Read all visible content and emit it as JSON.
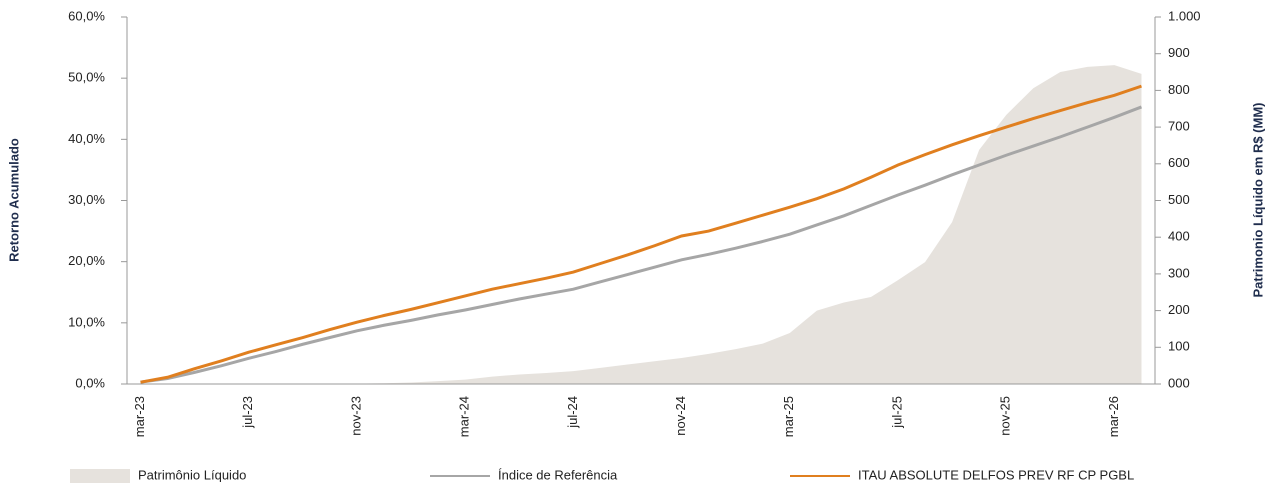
{
  "chart_data": {
    "type": "line",
    "categories": [
      "mar-23",
      null,
      null,
      null,
      "jul-23",
      null,
      null,
      null,
      "nov-23",
      null,
      null,
      null,
      "mar-24",
      null,
      null,
      null,
      "jul-24",
      null,
      null,
      null,
      "nov-24",
      null,
      null,
      null,
      "mar-25",
      null,
      null,
      null,
      "jul-25",
      null,
      null,
      null,
      "nov-25",
      null,
      null,
      null,
      "mar-26",
      null
    ],
    "y_label": "Retorno Acumulado",
    "y2_label": "Patrimonio Líquido em R$ (MM)",
    "ylim": [
      0,
      60
    ],
    "yticks": [
      {
        "value": 0,
        "label": "0,0%"
      },
      {
        "value": 10,
        "label": "10,0%"
      },
      {
        "value": 20,
        "label": "20,0%"
      },
      {
        "value": 30,
        "label": "30,0%"
      },
      {
        "value": 40,
        "label": "40,0%"
      },
      {
        "value": 50,
        "label": "50,0%"
      },
      {
        "value": 60,
        "label": "60,0%"
      }
    ],
    "y2lim": [
      0,
      1000
    ],
    "y2ticks": [
      {
        "value": 0,
        "label": "000"
      },
      100,
      200,
      300,
      400,
      500,
      600,
      700,
      800,
      900,
      {
        "value": 1000,
        "label": "1.000"
      }
    ],
    "series": [
      {
        "name": "Patrimônio Líquido",
        "type": "area",
        "axis": "y2",
        "color": "#e6e2dd",
        "values": [
          0,
          0,
          0,
          0,
          0,
          0,
          0,
          0,
          1,
          2,
          4,
          8,
          12,
          20,
          26,
          30,
          35,
          44,
          53,
          62,
          71,
          82,
          95,
          110,
          139,
          200,
          222,
          237,
          283,
          332,
          441,
          638,
          733,
          806,
          850,
          864,
          869,
          845
        ]
      },
      {
        "name": "Índice de Referência",
        "type": "line",
        "color": "#a6a6a6",
        "values": [
          0.3,
          0.9,
          1.9,
          3.0,
          4.2,
          5.3,
          6.5,
          7.6,
          8.7,
          9.6,
          10.4,
          11.3,
          12.1,
          13.0,
          13.9,
          14.7,
          15.5,
          16.7,
          17.9,
          19.1,
          20.3,
          21.2,
          22.2,
          23.3,
          24.5,
          26.0,
          27.5,
          29.2,
          30.9,
          32.5,
          34.2,
          35.8,
          37.4,
          38.9,
          40.4,
          42.0,
          43.6,
          45.3
        ]
      },
      {
        "name": "ITAU ABSOLUTE DELFOS PREV RF CP PGBL",
        "type": "line",
        "color": "#e07f1f",
        "values": [
          0.3,
          1.1,
          2.5,
          3.8,
          5.2,
          6.4,
          7.6,
          8.9,
          10.1,
          11.2,
          12.2,
          13.3,
          14.4,
          15.5,
          16.4,
          17.3,
          18.3,
          19.7,
          21.1,
          22.6,
          24.2,
          25.0,
          26.3,
          27.6,
          28.9,
          30.3,
          31.9,
          33.8,
          35.8,
          37.5,
          39.1,
          40.6,
          42.0,
          43.4,
          44.7,
          46.0,
          47.2,
          48.7
        ]
      }
    ]
  }
}
